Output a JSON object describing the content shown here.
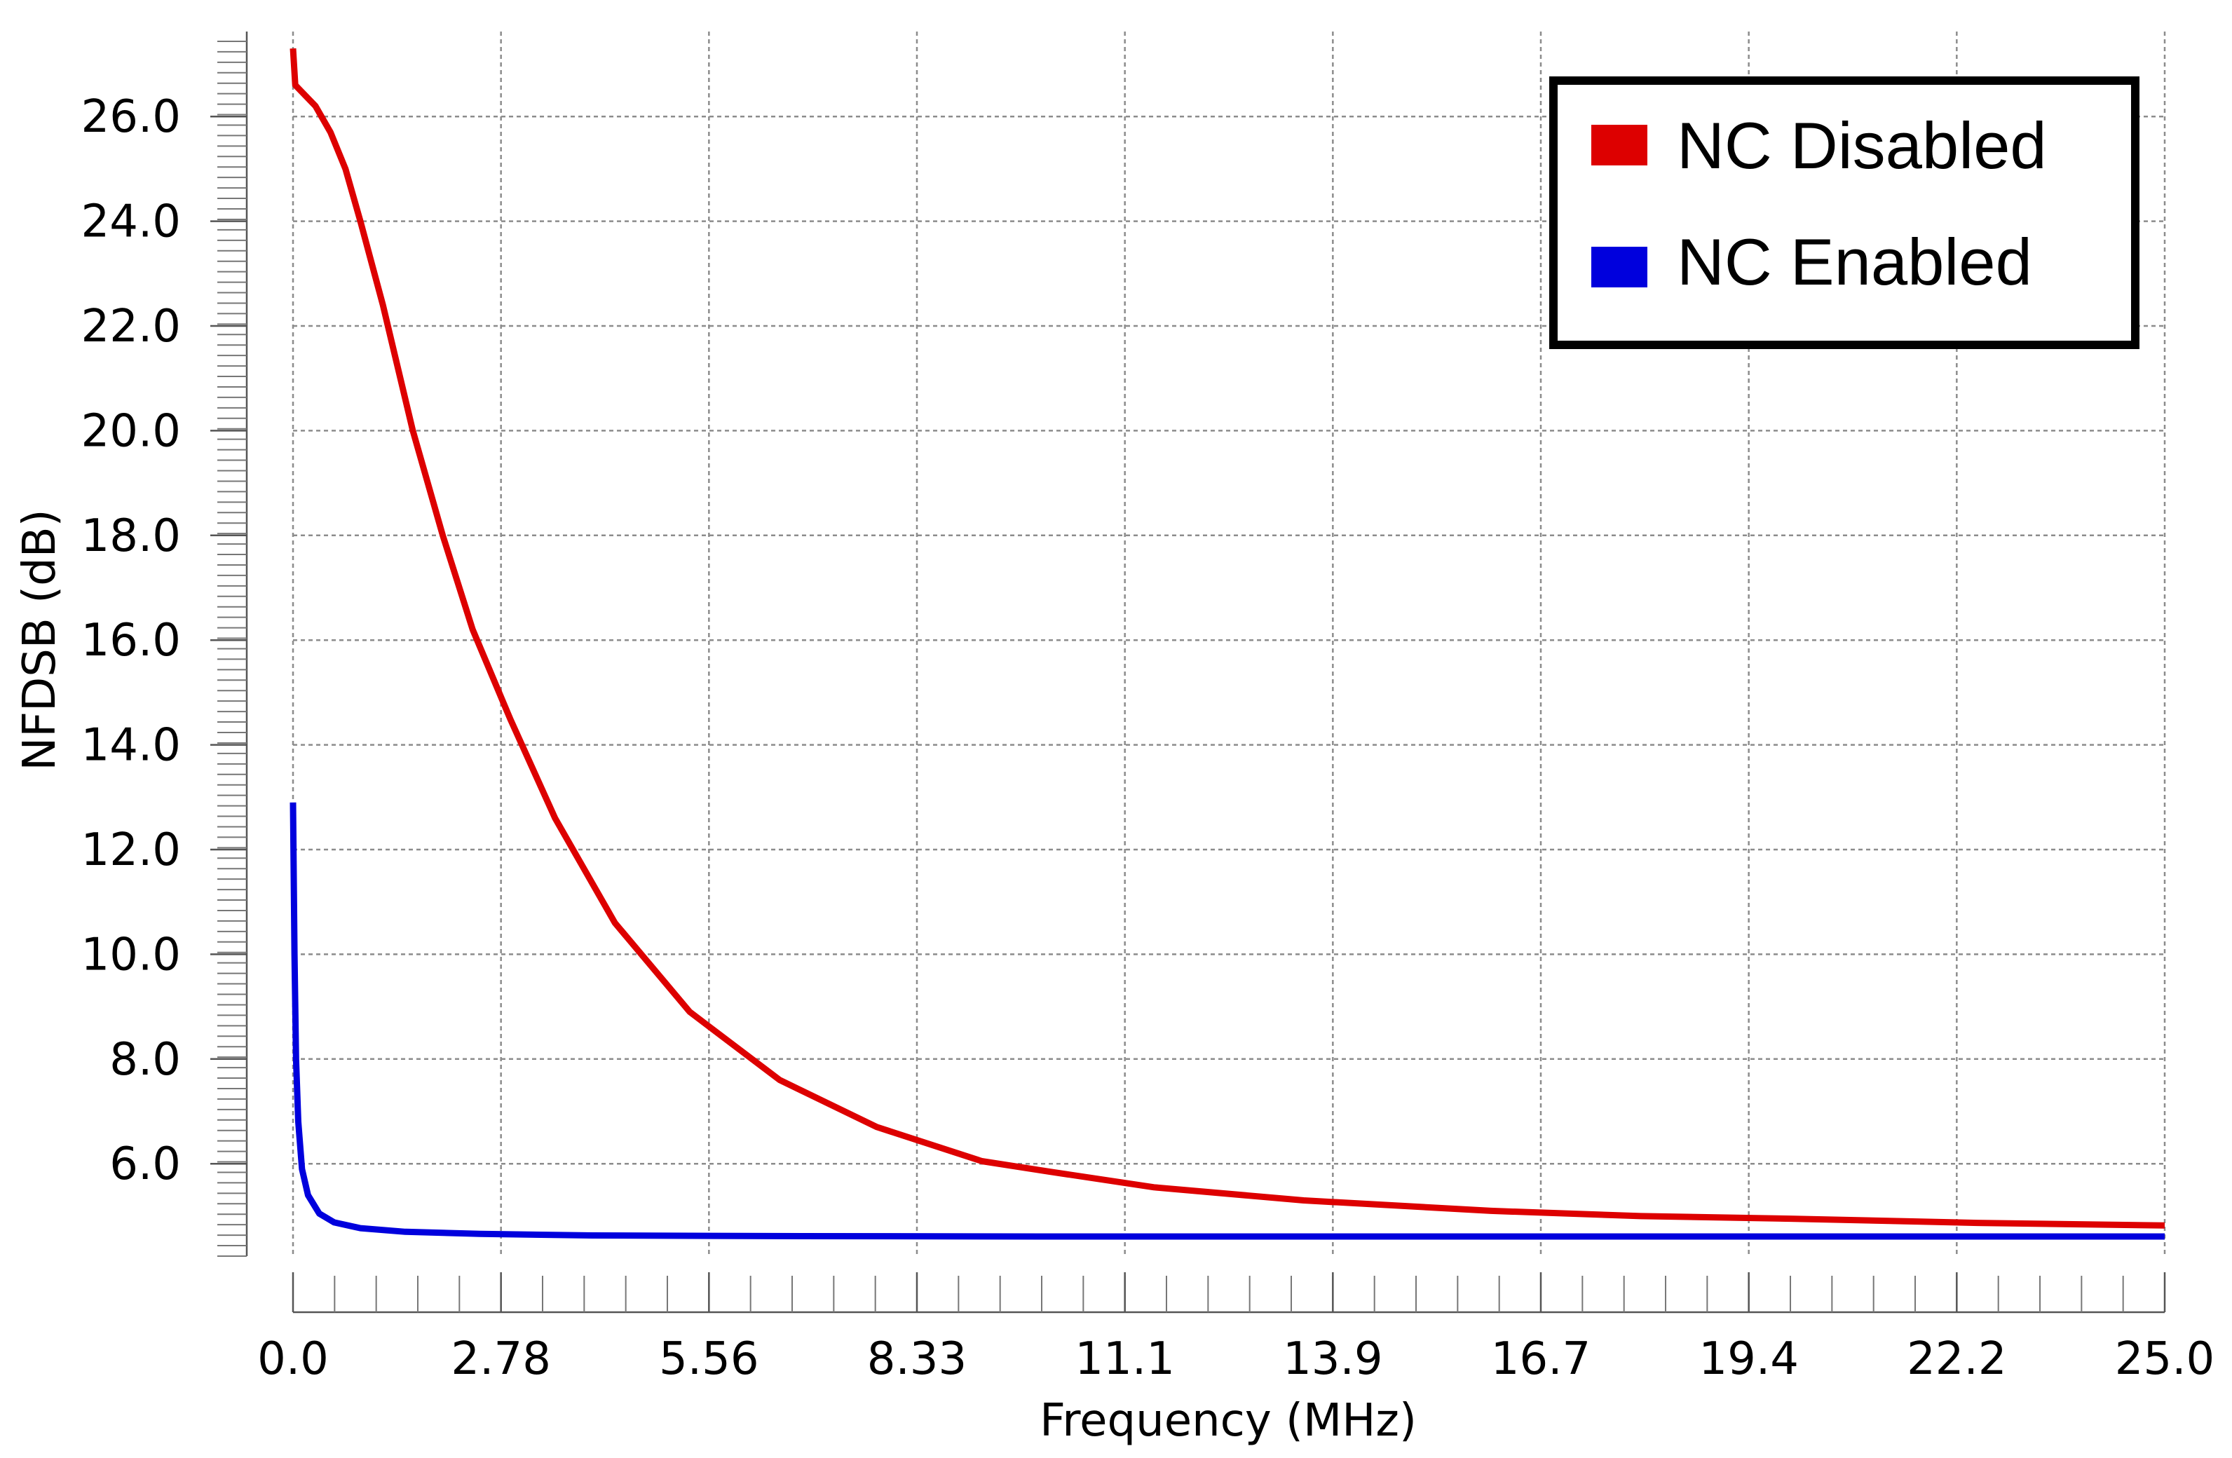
{
  "chart_data": {
    "type": "line",
    "xlabel": "Frequency (MHz)",
    "ylabel": "NFDSB (dB)",
    "xlim": [
      0,
      25
    ],
    "ylim": [
      4.5,
      27.5
    ],
    "x_ticks": [
      {
        "value": 0,
        "label": "0.0"
      },
      {
        "value": 2.7778,
        "label": "2.78"
      },
      {
        "value": 5.5556,
        "label": "5.56"
      },
      {
        "value": 8.3333,
        "label": "8.33"
      },
      {
        "value": 11.1111,
        "label": "11.1"
      },
      {
        "value": 13.8889,
        "label": "13.9"
      },
      {
        "value": 16.6667,
        "label": "16.7"
      },
      {
        "value": 19.4444,
        "label": "19.4"
      },
      {
        "value": 22.2222,
        "label": "22.2"
      },
      {
        "value": 25,
        "label": "25.0"
      }
    ],
    "y_ticks": [
      {
        "value": 6,
        "label": "6.0"
      },
      {
        "value": 8,
        "label": "8.0"
      },
      {
        "value": 10,
        "label": "10.0"
      },
      {
        "value": 12,
        "label": "12.0"
      },
      {
        "value": 14,
        "label": "14.0"
      },
      {
        "value": 16,
        "label": "16.0"
      },
      {
        "value": 18,
        "label": "18.0"
      },
      {
        "value": 20,
        "label": "20.0"
      },
      {
        "value": 22,
        "label": "22.0"
      },
      {
        "value": 24,
        "label": "24.0"
      },
      {
        "value": 26,
        "label": "26.0"
      }
    ],
    "grid": true,
    "legend": {
      "position": "top-right"
    },
    "series": [
      {
        "name": "NC Disabled",
        "color": "#dd0000",
        "points": [
          [
            0.0,
            27.3
          ],
          [
            0.03,
            26.6
          ],
          [
            0.3,
            26.2
          ],
          [
            0.5,
            25.7
          ],
          [
            0.7,
            25.0
          ],
          [
            0.9,
            24.0
          ],
          [
            1.2,
            22.4
          ],
          [
            1.6,
            20.0
          ],
          [
            2.0,
            18.0
          ],
          [
            2.4,
            16.2
          ],
          [
            2.9,
            14.5
          ],
          [
            3.5,
            12.6
          ],
          [
            4.3,
            10.6
          ],
          [
            5.3,
            8.9
          ],
          [
            6.5,
            7.6
          ],
          [
            7.8,
            6.7
          ],
          [
            9.2,
            6.05
          ],
          [
            10.1,
            5.85
          ],
          [
            11.5,
            5.55
          ],
          [
            13.5,
            5.3
          ],
          [
            16.0,
            5.1
          ],
          [
            18.0,
            5.0
          ],
          [
            20.0,
            4.95
          ],
          [
            22.5,
            4.87
          ],
          [
            25.0,
            4.82
          ]
        ]
      },
      {
        "name": "NC Enabled",
        "color": "#0000dd",
        "points": [
          [
            0.0,
            12.9
          ],
          [
            0.02,
            10.0
          ],
          [
            0.04,
            8.0
          ],
          [
            0.07,
            6.8
          ],
          [
            0.12,
            5.9
          ],
          [
            0.2,
            5.4
          ],
          [
            0.35,
            5.05
          ],
          [
            0.55,
            4.88
          ],
          [
            0.9,
            4.77
          ],
          [
            1.5,
            4.7
          ],
          [
            2.5,
            4.66
          ],
          [
            4.0,
            4.63
          ],
          [
            6.0,
            4.62
          ],
          [
            10.0,
            4.61
          ],
          [
            15.0,
            4.61
          ],
          [
            20.0,
            4.61
          ],
          [
            25.0,
            4.61
          ]
        ]
      }
    ]
  }
}
